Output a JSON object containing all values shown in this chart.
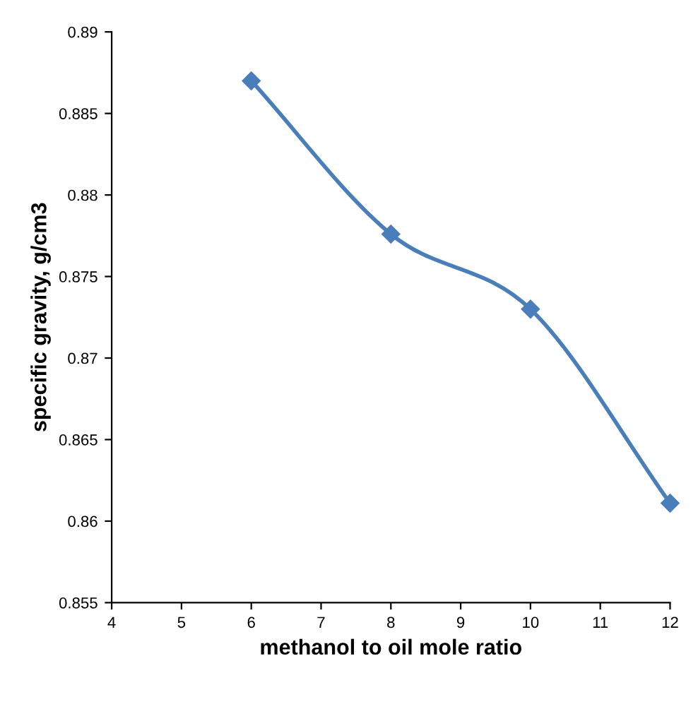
{
  "chart_data": {
    "type": "line",
    "xlabel": "methanol to oil mole ratio",
    "ylabel": "specific gravity, g/cm3",
    "x": [
      6,
      8,
      10,
      12
    ],
    "series": [
      {
        "color": "#4a7ebb",
        "values": [
          0.887,
          0.8776,
          0.873,
          0.8611
        ]
      }
    ],
    "xlim": [
      4,
      12
    ],
    "xticks": [
      4,
      5,
      6,
      7,
      8,
      9,
      10,
      11,
      12
    ],
    "ylim": [
      0.855,
      0.89
    ],
    "yticks": [
      0.855,
      0.86,
      0.865,
      0.87,
      0.875,
      0.88,
      0.885,
      0.89
    ],
    "marker": "diamond",
    "line_style": "solid",
    "grid": false
  }
}
